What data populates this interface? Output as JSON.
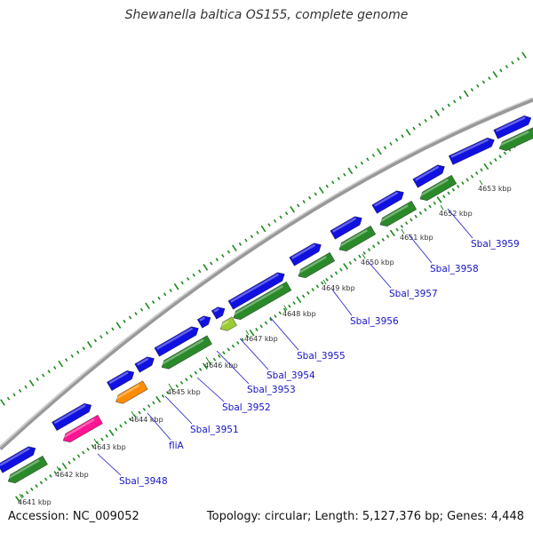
{
  "title": "Shewanella baltica OS155, complete genome",
  "footer": {
    "accession": "Accession: NC_009052",
    "summary": "Topology: circular; Length: 5,127,376 bp; Genes: 4,448"
  },
  "colors": {
    "forward_strand": "#1010e0",
    "reverse_strand": "#2a8a2a",
    "highlight_pink": "#ff1493",
    "highlight_orange": "#ff8c00",
    "highlight_lightgreen": "#9acd32",
    "backbone": "#999999",
    "tick": "#1a8a1a",
    "label": "#1515c8"
  },
  "kbp_ticks": [
    "4641 kbp",
    "4642 kbp",
    "4643 kbp",
    "4644 kbp",
    "4645 kbp",
    "4646 kbp",
    "4647 kbp",
    "4648 kbp",
    "4649 kbp",
    "4650 kbp",
    "4651 kbp",
    "4652 kbp",
    "4653 kbp"
  ],
  "gene_labels": [
    "Sbal_3948",
    "fliA",
    "Sbal_3951",
    "Sbal_3952",
    "Sbal_3953",
    "Sbal_3954",
    "Sbal_3955",
    "Sbal_3956",
    "Sbal_3957",
    "Sbal_3958",
    "Sbal_3959"
  ]
}
